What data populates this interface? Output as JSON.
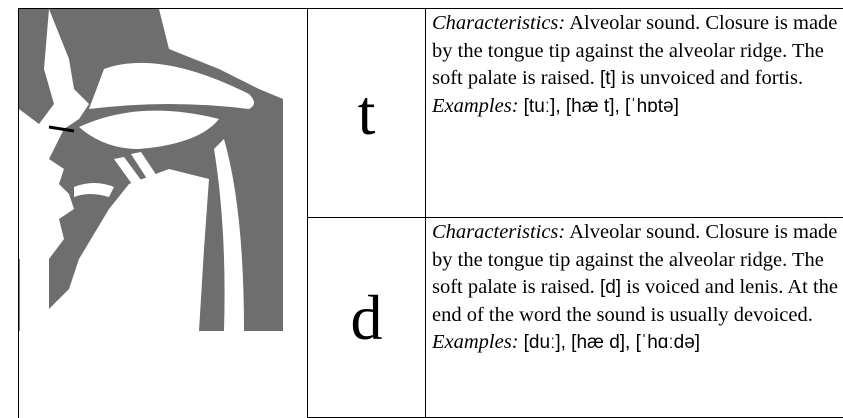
{
  "table": {
    "rows": [
      {
        "letter": "t",
        "characteristics_label": "Characteristics:",
        "characteristics_before": " Alveolar sound. Closure is made by the tongue tip against the alveolar ridge. The soft palate is raised. ",
        "phoneme": "[t]",
        "characteristics_after": " is unvoiced and fortis.",
        "examples_label": "Examples:",
        "examples": "[tuː], [hæ t], [ˈhɒtə]"
      },
      {
        "letter": "d",
        "characteristics_label": "Characteristics:",
        "characteristics_before": " Alveolar sound. Closure is made by the tongue tip against the alveolar ridge. The soft palate is raised. ",
        "phoneme": "[d]",
        "characteristics_after": " is voiced and lenis. At the end of the word the sound is usually devoiced.",
        "examples_label": "Examples:",
        "examples": "[duː], [hæ d], [ˈhɑːdə]"
      }
    ]
  }
}
